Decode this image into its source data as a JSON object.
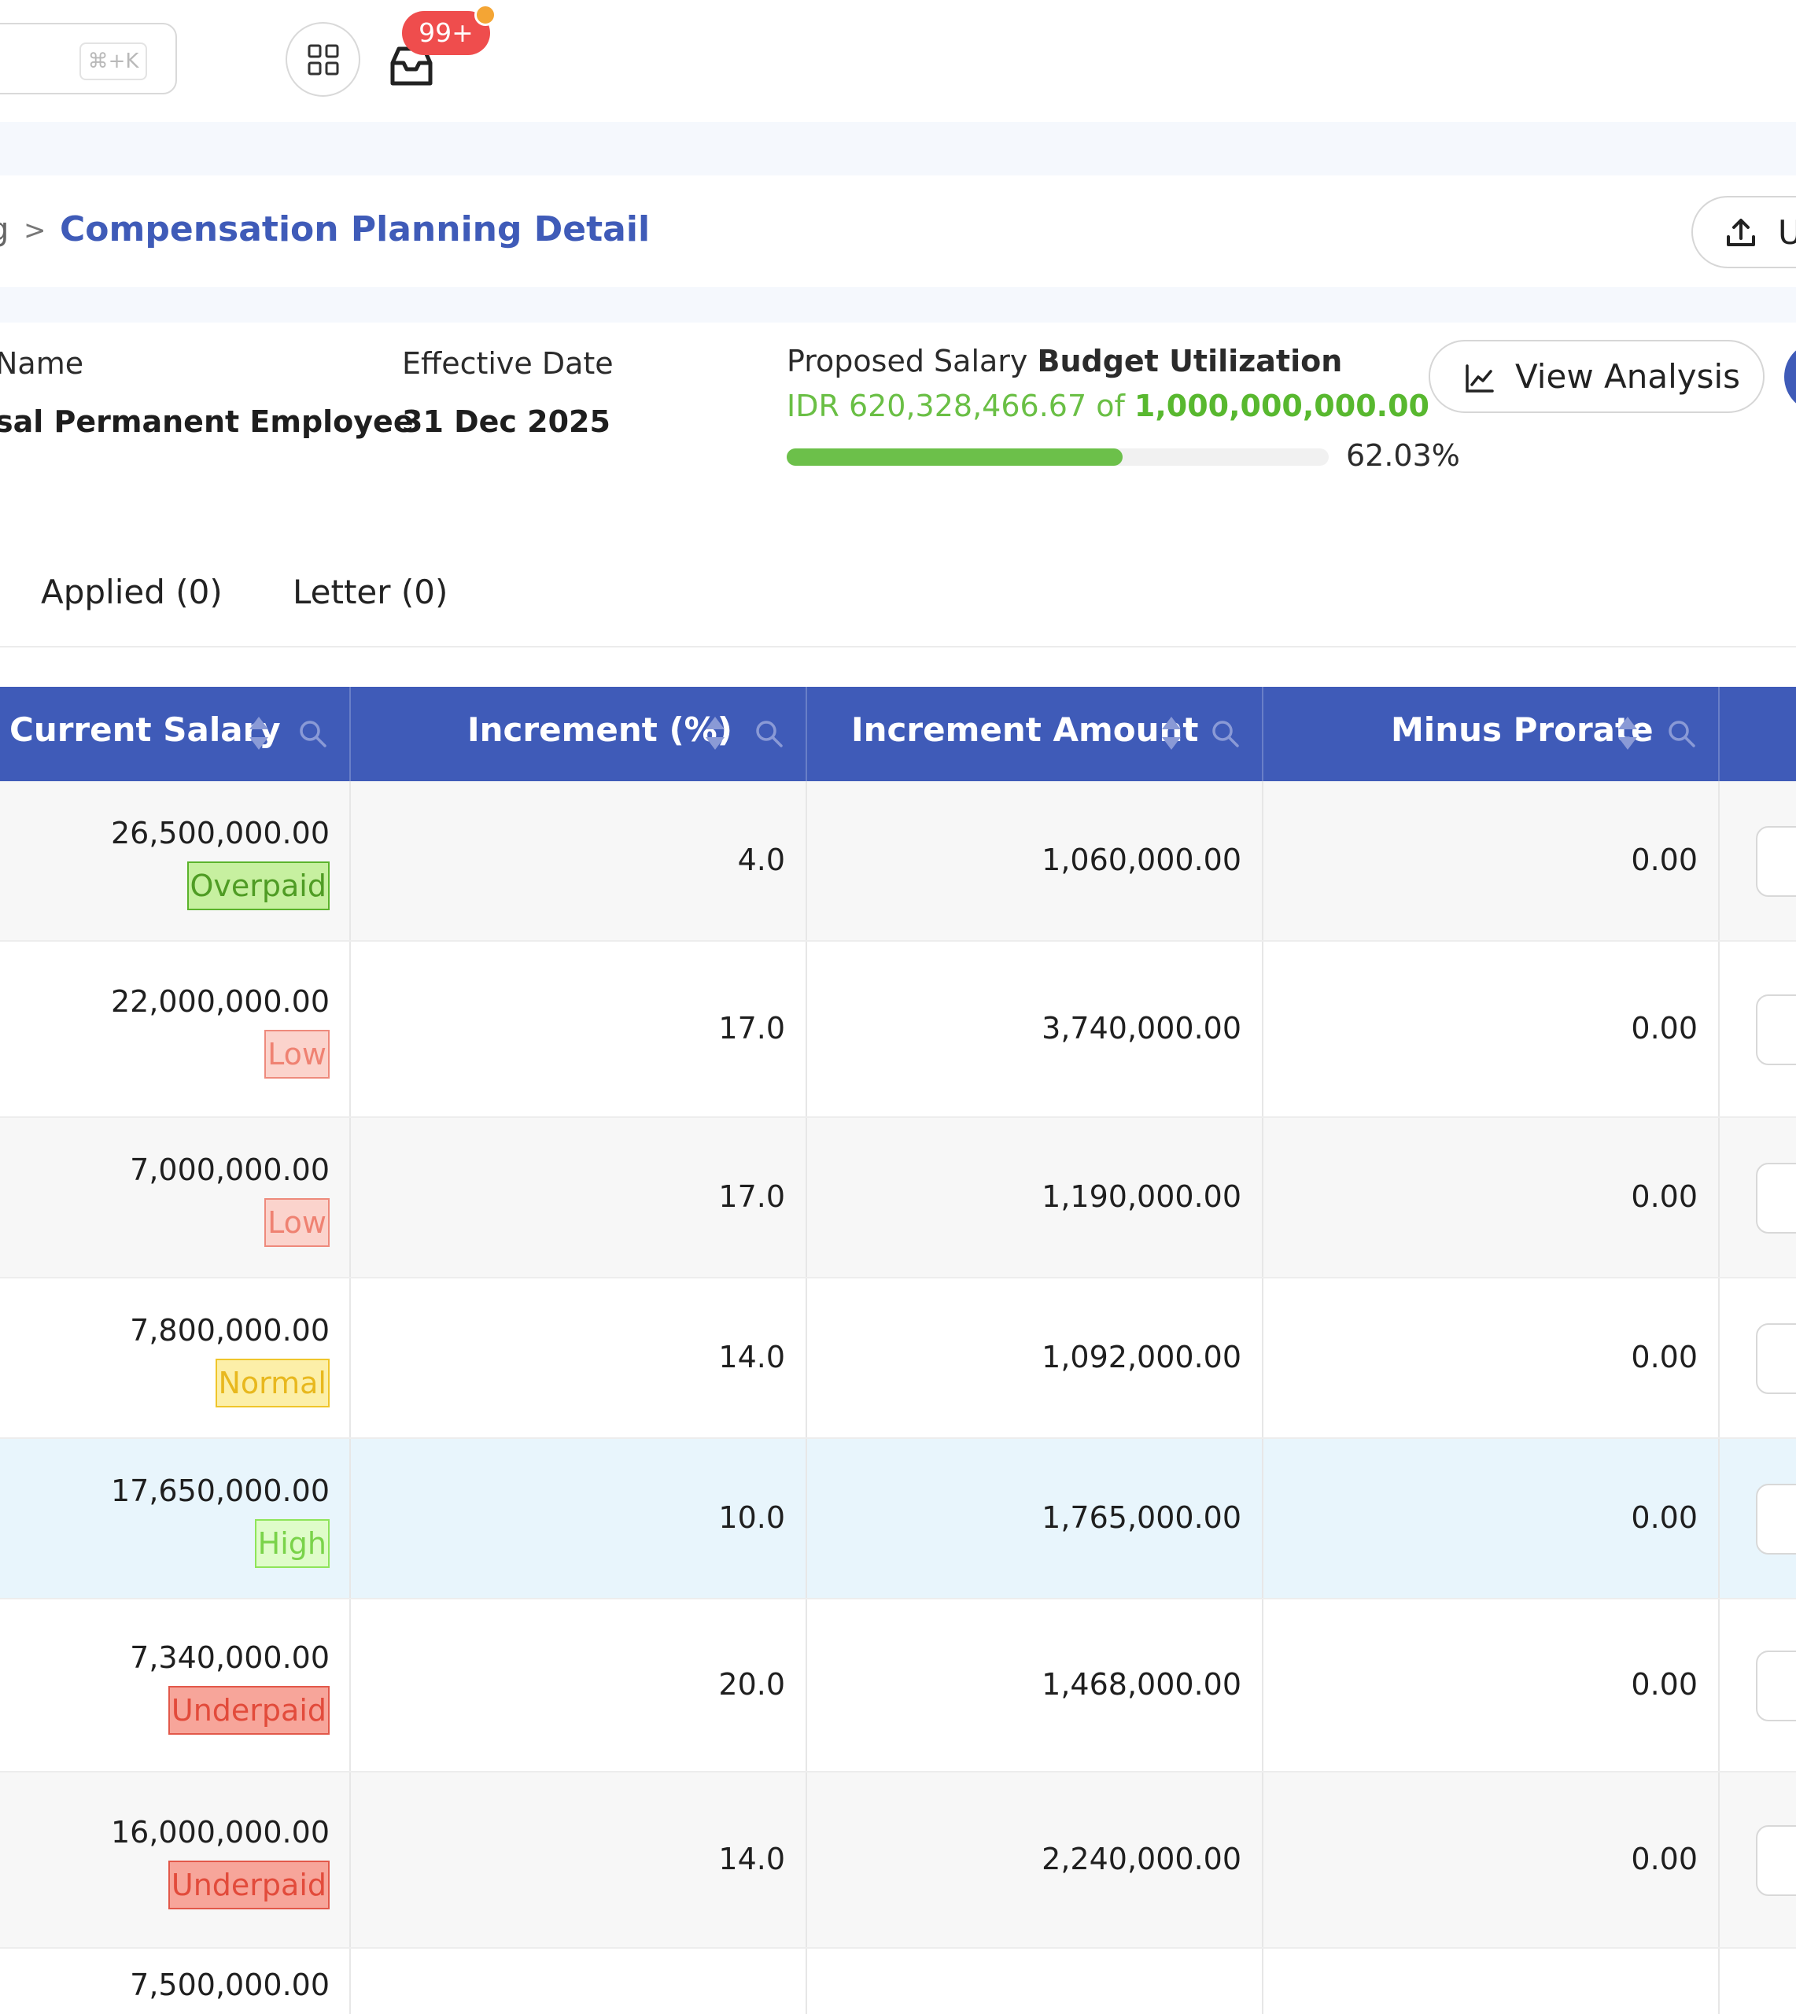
{
  "topbar": {
    "search_shortcut": "⌘+K",
    "notification_count": "99+"
  },
  "breadcrumb": {
    "previous": "g",
    "separator": ">",
    "current": "Compensation Planning Detail",
    "upload_label": "U"
  },
  "info": {
    "name_label": "Name",
    "name_value": "sal Permanent Employee",
    "effective_label": "Effective Date",
    "effective_value": "31 Dec 2025",
    "budget_label_prefix": "Proposed Salary ",
    "budget_label_bold": "Budget Utilization",
    "budget_used": "IDR 620,328,466.67 of ",
    "budget_total": "1,000,000,000.00",
    "budget_percent": "62.03%",
    "budget_fraction": 0.6203,
    "view_analysis_label": "View Analysis"
  },
  "tabs": [
    {
      "label": "Applied (0)"
    },
    {
      "label": "Letter (0)"
    }
  ],
  "table": {
    "columns": [
      {
        "label": "Current Salary"
      },
      {
        "label": "Increment (%)"
      },
      {
        "label": "Increment Amount"
      },
      {
        "label": "Minus Prorate"
      }
    ],
    "rows": [
      {
        "salary": "26,500,000.00",
        "tag": "Overpaid",
        "tag_type": "overpaid",
        "increment_pct": "4.0",
        "increment_amount": "1,060,000.00",
        "minus_prorate": "0.00",
        "state": "alt"
      },
      {
        "salary": "22,000,000.00",
        "tag": "Low",
        "tag_type": "low",
        "increment_pct": "17.0",
        "increment_amount": "3,740,000.00",
        "minus_prorate": "0.00",
        "state": "plain"
      },
      {
        "salary": "7,000,000.00",
        "tag": "Low",
        "tag_type": "low",
        "increment_pct": "17.0",
        "increment_amount": "1,190,000.00",
        "minus_prorate": "0.00",
        "state": "alt"
      },
      {
        "salary": "7,800,000.00",
        "tag": "Normal",
        "tag_type": "normal",
        "increment_pct": "14.0",
        "increment_amount": "1,092,000.00",
        "minus_prorate": "0.00",
        "state": "plain"
      },
      {
        "salary": "17,650,000.00",
        "tag": "High",
        "tag_type": "high",
        "increment_pct": "10.0",
        "increment_amount": "1,765,000.00",
        "minus_prorate": "0.00",
        "state": "sel"
      },
      {
        "salary": "7,340,000.00",
        "tag": "Underpaid",
        "tag_type": "underpaid",
        "increment_pct": "20.0",
        "increment_amount": "1,468,000.00",
        "minus_prorate": "0.00",
        "state": "plain"
      },
      {
        "salary": "16,000,000.00",
        "tag": "Underpaid",
        "tag_type": "underpaid",
        "increment_pct": "14.0",
        "increment_amount": "2,240,000.00",
        "minus_prorate": "0.00",
        "state": "alt"
      },
      {
        "salary": "7,500,000.00",
        "tag": "",
        "tag_type": "",
        "increment_pct": "",
        "increment_amount": "",
        "minus_prorate": "",
        "state": "plain"
      }
    ]
  },
  "colors": {
    "primary": "#3f5bb8",
    "budget_green": "#58b82f",
    "badge_red": "#ef4d4d"
  }
}
